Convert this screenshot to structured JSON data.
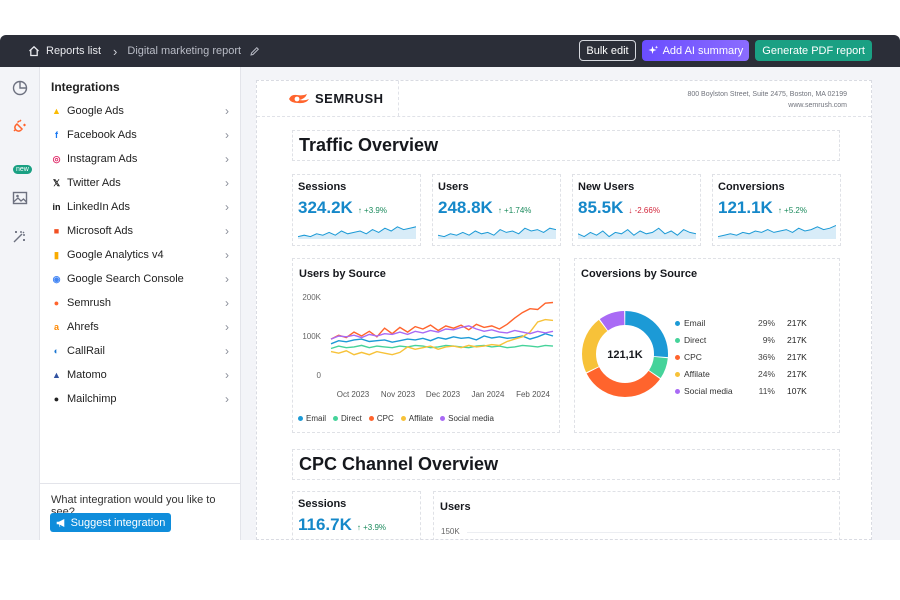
{
  "topbar": {
    "reports_label": "Reports list",
    "current_report": "Digital marketing report",
    "bulk_edit": "Bulk edit",
    "ai_summary": "Add AI summary",
    "generate_pdf": "Generate PDF report"
  },
  "rail": {
    "new_badge": "new"
  },
  "sidebar": {
    "title": "Integrations",
    "items": [
      {
        "label": "Google Ads",
        "icon": "google-ads-icon",
        "color": "#fbbc04"
      },
      {
        "label": "Facebook Ads",
        "icon": "facebook-icon",
        "color": "#1877f2"
      },
      {
        "label": "Instagram Ads",
        "icon": "instagram-icon",
        "color": "#e1306c"
      },
      {
        "label": "Twitter Ads",
        "icon": "x-twitter-icon",
        "color": "#111111"
      },
      {
        "label": "LinkedIn Ads",
        "icon": "linkedin-icon",
        "color": "#111111"
      },
      {
        "label": "Microsoft Ads",
        "icon": "microsoft-icon",
        "color": "#f25022"
      },
      {
        "label": "Google Analytics v4",
        "icon": "google-analytics-icon",
        "color": "#f9ab00"
      },
      {
        "label": "Google Search Console",
        "icon": "search-console-icon",
        "color": "#4285f4"
      },
      {
        "label": "Semrush",
        "icon": "semrush-icon",
        "color": "#ff642d"
      },
      {
        "label": "Ahrefs",
        "icon": "ahrefs-icon",
        "color": "#ff8800"
      },
      {
        "label": "CallRail",
        "icon": "callrail-icon",
        "color": "#1a76d2"
      },
      {
        "label": "Matomo",
        "icon": "matomo-icon",
        "color": "#3152a0"
      },
      {
        "label": "Mailchimp",
        "icon": "mailchimp-icon",
        "color": "#222222"
      }
    ],
    "ask": "What integration would you like to see?",
    "suggest": "Suggest integration"
  },
  "report": {
    "brand": "SEMRUSH",
    "address_line1": "800 Boylston Street, Suite 2475, Boston, MA 02199",
    "address_line2": "www.semrush.com",
    "traffic_title": "Traffic Overview",
    "kpis": [
      {
        "label": "Sessions",
        "value": "324.2K",
        "change": "↑ +3.9%",
        "dir": "up"
      },
      {
        "label": "Users",
        "value": "248.8K",
        "change": "↑ +1.74%",
        "dir": "up"
      },
      {
        "label": "New Users",
        "value": "85.5K",
        "change": "↓ -2.66%",
        "dir": "down"
      },
      {
        "label": "Conversions",
        "value": "121.1K",
        "change": "↑ +5.2%",
        "dir": "up"
      }
    ],
    "users_by_source_title": "Users by Source",
    "conversions_title": "Coversions by Source",
    "donut_center": "121,1K",
    "donut_legend": [
      {
        "name": "Email",
        "pct": "29%",
        "count": "217K",
        "color": "#1c9ad6"
      },
      {
        "name": "Direct",
        "pct": "9%",
        "count": "217K",
        "color": "#45d39a"
      },
      {
        "name": "CPC",
        "pct": "36%",
        "count": "217K",
        "color": "#ff642d"
      },
      {
        "name": "Affilate",
        "pct": "24%",
        "count": "217K",
        "color": "#f7c239"
      },
      {
        "name": "Social media",
        "pct": "11%",
        "count": "107K",
        "color": "#a96af5"
      }
    ],
    "cpc_title": "CPC Channel Overview",
    "cpc_sessions_label": "Sessions",
    "cpc_sessions_value": "116.7K",
    "cpc_sessions_change": "↑ +3.9%",
    "cpc_users_label": "Users",
    "cpc_users_tick": "150K"
  },
  "chart_data": [
    {
      "type": "line",
      "title": "Users by Source",
      "x_tick_labels": [
        "Oct 2023",
        "Nov 2023",
        "Dec 2023",
        "Jan 2024",
        "Feb 2024"
      ],
      "y_tick_labels": [
        "200K",
        "100K",
        "0"
      ],
      "ylim": [
        0,
        200000
      ],
      "legend": "bottom",
      "series": [
        {
          "name": "Email",
          "color": "#1c9ad6",
          "values": [
            80000,
            88000,
            85000,
            90000,
            92000,
            86000,
            88000,
            90000,
            84000,
            88000,
            92000,
            90000,
            94000,
            88000,
            96000,
            92000,
            98000,
            94000,
            96000,
            90000,
            100000,
            95000,
            98000,
            94000,
            96000,
            100000,
            92000,
            98000,
            106000,
            100000
          ]
        },
        {
          "name": "Direct",
          "color": "#45d39a",
          "values": [
            68000,
            74000,
            70000,
            72000,
            76000,
            70000,
            74000,
            72000,
            70000,
            74000,
            72000,
            76000,
            74000,
            70000,
            72000,
            76000,
            74000,
            72000,
            70000,
            74000,
            76000,
            72000,
            74000,
            70000,
            72000,
            76000,
            74000,
            72000,
            76000,
            74000
          ]
        },
        {
          "name": "CPC",
          "color": "#ff642d",
          "values": [
            92000,
            102000,
            96000,
            110000,
            100000,
            112000,
            98000,
            120000,
            106000,
            122000,
            110000,
            124000,
            118000,
            128000,
            114000,
            126000,
            120000,
            128000,
            116000,
            130000,
            122000,
            126000,
            118000,
            130000,
            146000,
            160000,
            170000,
            168000,
            184000,
            186000
          ]
        },
        {
          "name": "Affilate",
          "color": "#f7c239",
          "values": [
            60000,
            56000,
            62000,
            52000,
            58000,
            52000,
            60000,
            56000,
            52000,
            58000,
            72000,
            66000,
            70000,
            74000,
            66000,
            72000,
            74000,
            70000,
            76000,
            72000,
            74000,
            78000,
            76000,
            86000,
            92000,
            98000,
            110000,
            136000,
            142000,
            140000
          ]
        },
        {
          "name": "Social media",
          "color": "#a96af5",
          "values": [
            92000,
            100000,
            98000,
            102000,
            96000,
            104000,
            100000,
            106000,
            104000,
            110000,
            104000,
            112000,
            108000,
            114000,
            110000,
            118000,
            116000,
            122000,
            126000,
            118000,
            112000,
            116000,
            110000,
            108000,
            114000,
            110000,
            106000,
            112000,
            108000,
            112000
          ]
        }
      ]
    },
    {
      "type": "pie",
      "title": "Coversions by Source",
      "center_label": "121,1K",
      "labels": [
        "Email",
        "Direct",
        "CPC",
        "Affilate",
        "Social media"
      ],
      "values": [
        29,
        9,
        36,
        24,
        11
      ]
    }
  ]
}
